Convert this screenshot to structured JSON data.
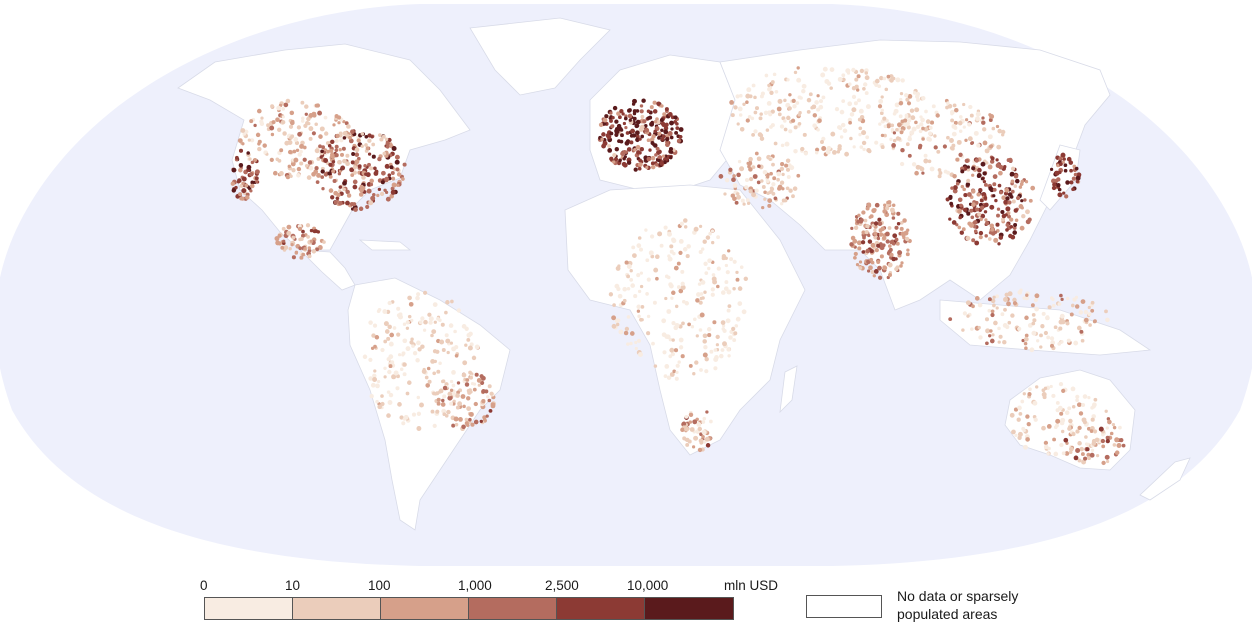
{
  "legend": {
    "ticks": [
      "0",
      "10",
      "100",
      "1,000",
      "2,500",
      "10,000"
    ],
    "unit": "mln USD",
    "classes": [
      {
        "range": "0–10",
        "color": "#f8ece2"
      },
      {
        "range": "10–100",
        "color": "#ebcdbb"
      },
      {
        "range": "100–1,000",
        "color": "#d6a08a"
      },
      {
        "range": "1,000–2,500",
        "color": "#b46c5f"
      },
      {
        "range": "2,500–10,000",
        "color": "#8c3a34"
      },
      {
        "range": "10,000+",
        "color": "#5a1a1c"
      }
    ],
    "no_data_label": [
      "No data or sparsely",
      "populated areas"
    ],
    "no_data_color": "#ffffff"
  },
  "map": {
    "projection": "robinson",
    "ocean_color": "#eef0fc",
    "land_color": "#ffffff",
    "hotspots": [
      {
        "region": "Western Europe",
        "class": 5
      },
      {
        "region": "Eastern China",
        "class": 5
      },
      {
        "region": "Japan",
        "class": 5
      },
      {
        "region": "Eastern United States",
        "class": 4
      },
      {
        "region": "California",
        "class": 4
      },
      {
        "region": "India",
        "class": 3
      },
      {
        "region": "South-east Brazil",
        "class": 3
      },
      {
        "region": "Mexico",
        "class": 3
      },
      {
        "region": "South Africa",
        "class": 3
      },
      {
        "region": "South-east Australia",
        "class": 3
      }
    ]
  }
}
